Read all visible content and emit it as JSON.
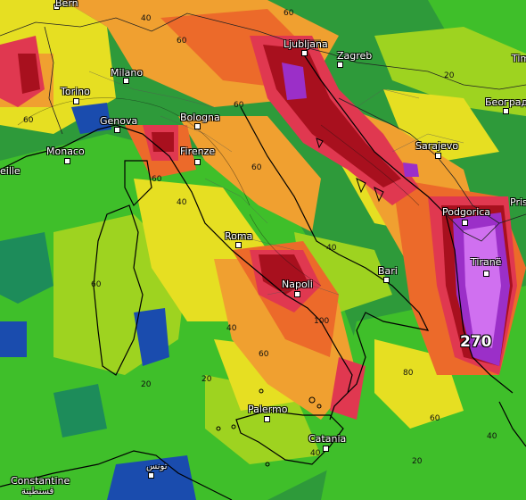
{
  "cities": {
    "bern": "Bern",
    "ljubljana": "Ljubljana",
    "zagreb": "Zagreb",
    "tim": "Tim",
    "milano": "Milano",
    "torino": "Torino",
    "beograd": "Београд",
    "genova": "Genova",
    "bologna": "Bologna",
    "sarajevo": "Sarajevo",
    "monaco": "Monaco",
    "marseille": "eille",
    "firenze": "Firenze",
    "podgorica": "Podgorica",
    "pris": "Pris",
    "roma": "Roma",
    "tirane": "Tiranë",
    "bari": "Bari",
    "napoli": "Napoli",
    "palermo": "Palermo",
    "catania": "Catania",
    "constantine": "Constantine",
    "constantine_ar": "قسنطينة",
    "tunis_ar": "تونس"
  },
  "contour_values": {
    "c40_alps": "40",
    "c60_alps": "60",
    "c60_west": "60",
    "c20_east": "20",
    "c60_adriatic": "60",
    "c40_ligurian": "40",
    "c60_tuscany": "60",
    "c60_coast": "60",
    "c40_central": "40",
    "c60_sardinia_w": "60",
    "c40_tyrrhenian": "40",
    "c60_south": "60",
    "c20_sardinia": "20",
    "c20_sicily_w": "20",
    "c40_sicily": "40",
    "c80_ionian": "80",
    "c100_calabria": "100",
    "c60_ionian": "60",
    "c40_greece": "40",
    "c20_malta": "20",
    "c60_north": "60"
  },
  "max_value": "270",
  "colors": {
    "sea_green": "#2e9a3a",
    "green": "#3fbf2a",
    "light_green": "#9ed320",
    "yellow": "#e6df22",
    "orange": "#f0a030",
    "dark_orange": "#ec6a2a",
    "red": "#e03850",
    "dark_red": "#a8101e",
    "purple": "#9b2fc8",
    "light_purple": "#d070f0",
    "blue": "#1a4cae",
    "teal": "#1d8c5a"
  }
}
